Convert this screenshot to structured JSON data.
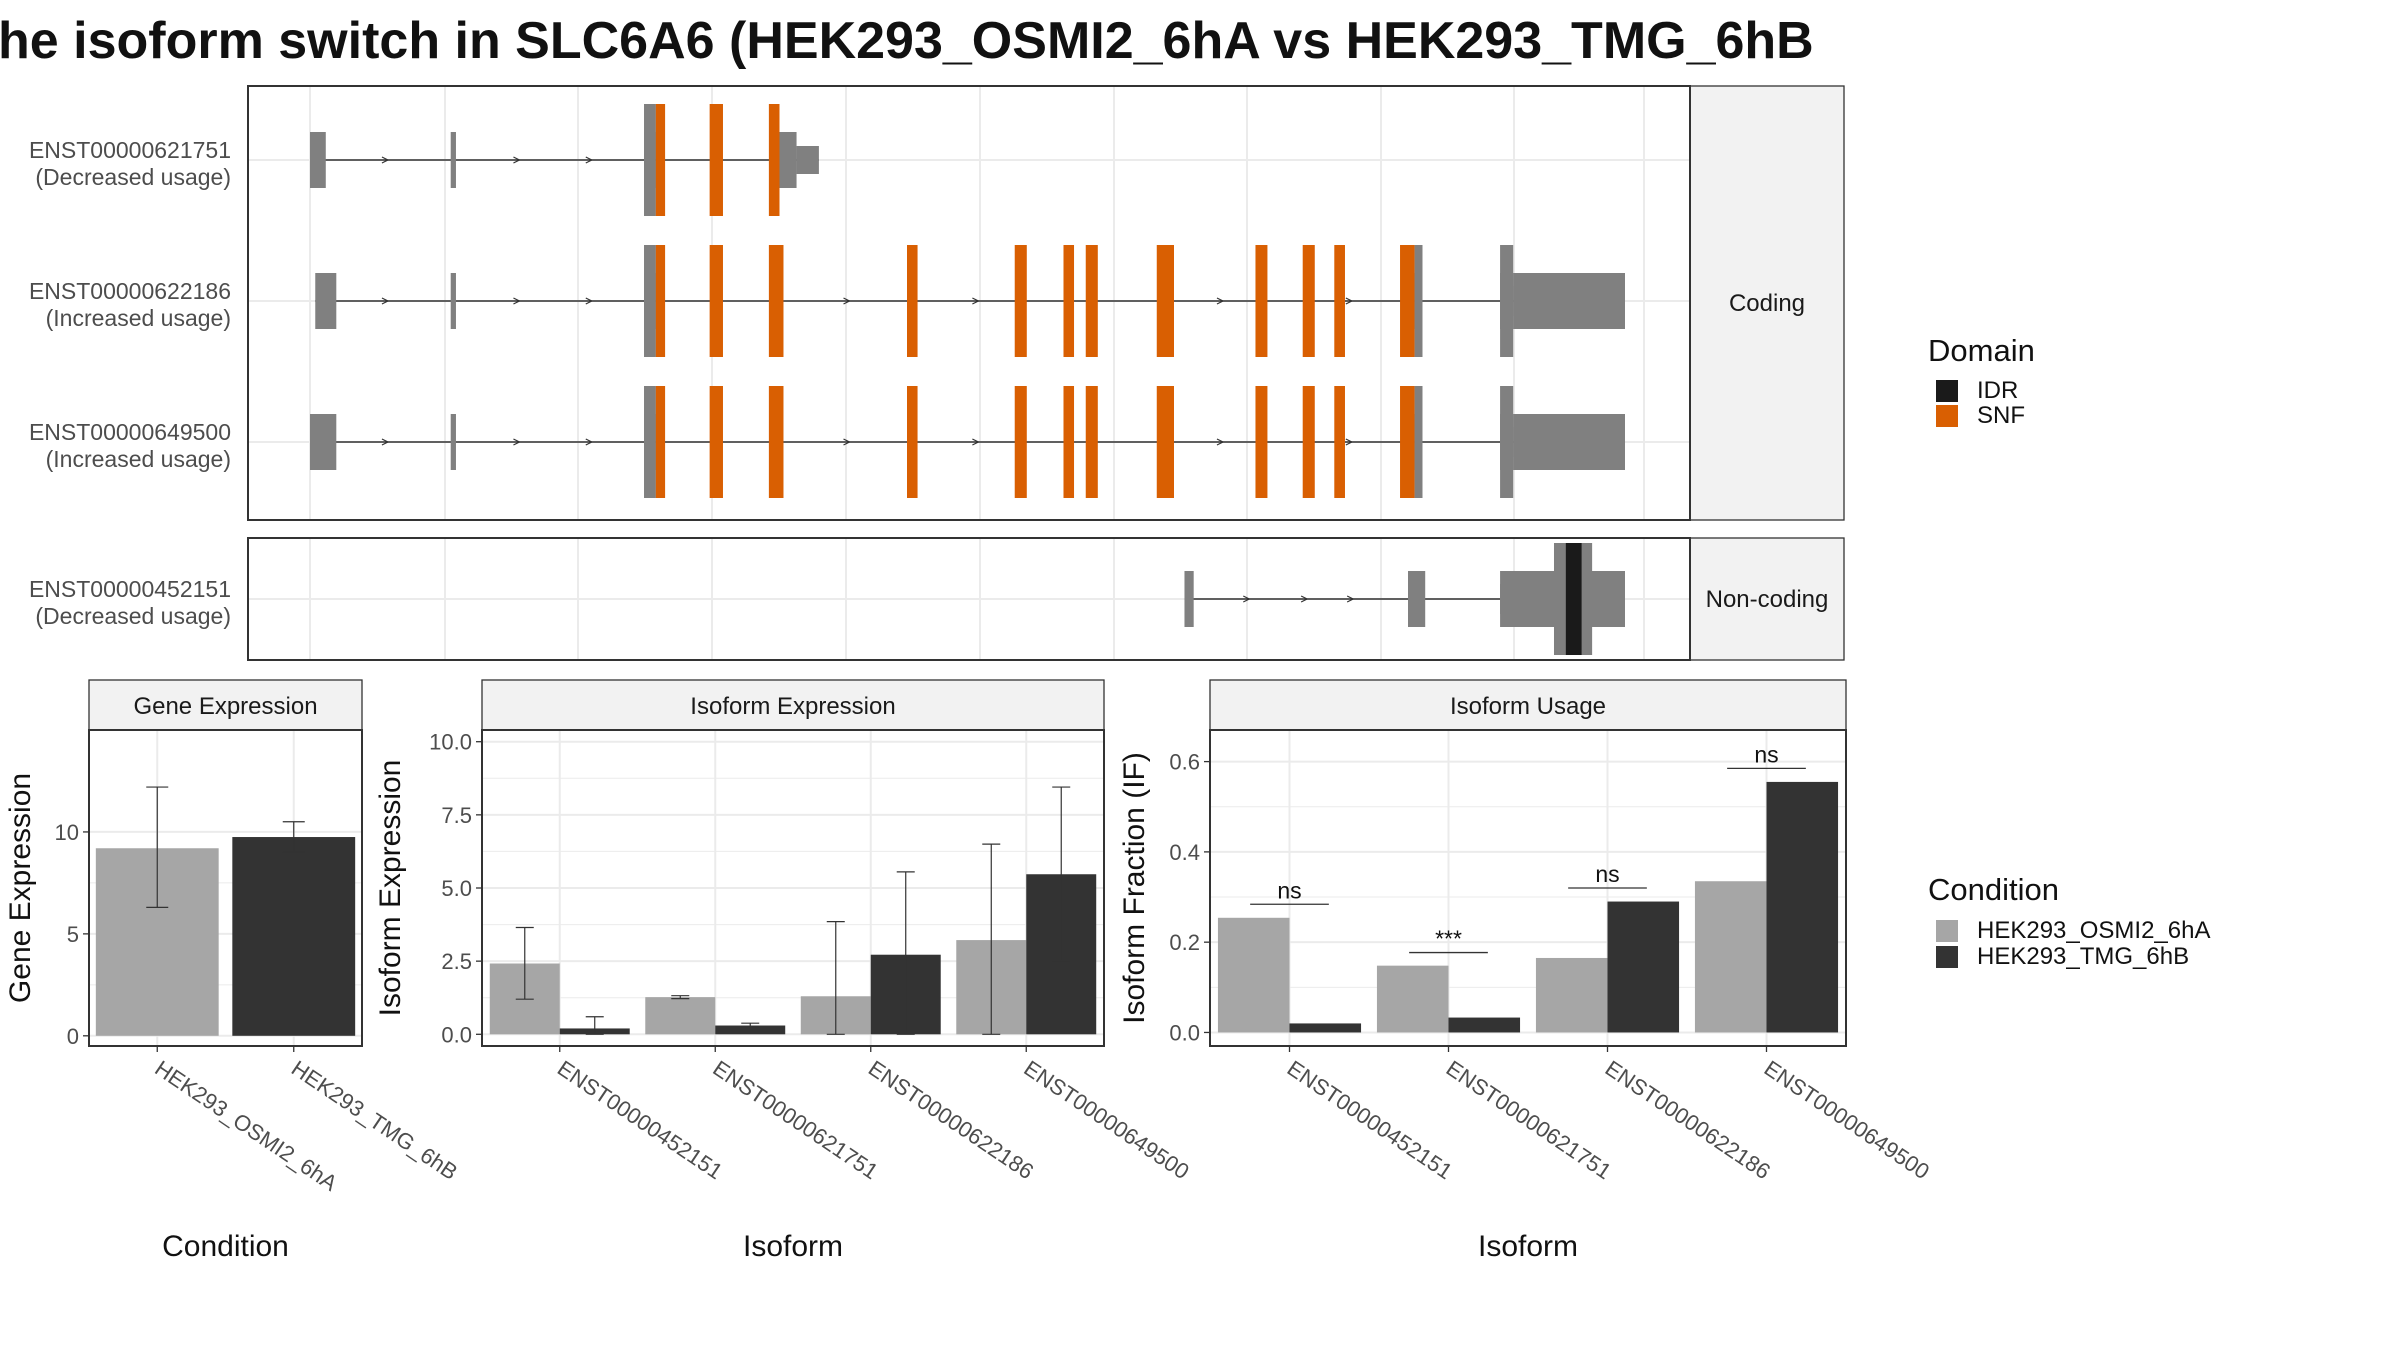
{
  "title": "he isoform switch in SLC6A6 (HEK293_OSMI2_6hA vs HEK293_TMG_6hB",
  "colors": {
    "exon": "#808080",
    "snf": "#d95f02",
    "idr": "#1a1a1a",
    "condA": "#a6a6a6",
    "condB": "#333333"
  },
  "structure": {
    "x_domain": [
      0,
      1000
    ],
    "coding_label": "Coding",
    "noncoding_label": "Non-coding",
    "transcripts": [
      {
        "id": "ENST00000621751",
        "usage": "(Decreased usage)",
        "panel": "coding",
        "exons": [
          [
            0,
            12
          ],
          [
            107,
            111
          ],
          [
            254,
            263
          ],
          [
            357,
            370
          ]
        ],
        "cds_small": [
          [
            370,
            387
          ]
        ],
        "domains": [
          {
            "type": "SNF",
            "ranges": [
              [
                263,
                270
              ],
              [
                304,
                314
              ],
              [
                349,
                357
              ]
            ]
          }
        ],
        "arrows": [
          57,
          157,
          212
        ]
      },
      {
        "id": "ENST00000622186",
        "usage": "(Increased usage)",
        "panel": "coding",
        "exons": [
          [
            4,
            20
          ],
          [
            107,
            111
          ],
          [
            254,
            263
          ],
          [
            905,
            915
          ]
        ],
        "cds_big": [
          [
            915,
            1000
          ]
        ],
        "domains": [
          {
            "type": "SNF",
            "ranges": [
              [
                263,
                270
              ],
              [
                304,
                314
              ],
              [
                349,
                360
              ],
              [
                454,
                462
              ],
              [
                536,
                545
              ],
              [
                573,
                581
              ],
              [
                590,
                599
              ],
              [
                644,
                657
              ],
              [
                719,
                728
              ],
              [
                755,
                764
              ],
              [
                779,
                787
              ],
              [
                829,
                840
              ]
            ]
          }
        ],
        "tail_exons": [
          [
            840,
            846
          ]
        ],
        "arrows": [
          57,
          157,
          212,
          408,
          506,
          692,
          790
        ]
      },
      {
        "id": "ENST00000649500",
        "usage": "(Increased usage)",
        "panel": "coding",
        "exons": [
          [
            0,
            20
          ],
          [
            107,
            111
          ],
          [
            254,
            263
          ],
          [
            905,
            915
          ]
        ],
        "cds_big": [
          [
            915,
            1000
          ]
        ],
        "domains": [
          {
            "type": "SNF",
            "ranges": [
              [
                263,
                270
              ],
              [
                304,
                314
              ],
              [
                349,
                360
              ],
              [
                454,
                462
              ],
              [
                536,
                545
              ],
              [
                573,
                581
              ],
              [
                590,
                599
              ],
              [
                644,
                657
              ],
              [
                719,
                728
              ],
              [
                755,
                764
              ],
              [
                779,
                787
              ],
              [
                829,
                840
              ]
            ]
          }
        ],
        "tail_exons": [
          [
            840,
            846
          ]
        ],
        "arrows": [
          57,
          157,
          212,
          408,
          506,
          692,
          790
        ]
      },
      {
        "id": "ENST00000452151",
        "usage": "(Decreased usage)",
        "panel": "noncoding",
        "exons": [
          [
            665,
            672
          ],
          [
            835,
            848
          ]
        ],
        "cds_big": [
          [
            905,
            1000
          ]
        ],
        "domains": [
          {
            "type": "IDR",
            "ranges": [
              [
                955,
                967
              ]
            ]
          }
        ],
        "arrows": [
          712,
          756,
          791
        ]
      }
    ]
  },
  "legend_domain": {
    "title": "Domain",
    "items": [
      "IDR",
      "SNF"
    ]
  },
  "legend_condition": {
    "title": "Condition",
    "items": [
      "HEK293_OSMI2_6hA",
      "HEK293_TMG_6hB"
    ]
  },
  "chart_data": [
    {
      "type": "bar",
      "title": "Gene Expression",
      "xlabel": "Condition",
      "ylabel": "Gene Expression",
      "categories": [
        "HEK293_OSMI2_6hA",
        "HEK293_TMG_6hB"
      ],
      "values": [
        9.2,
        9.75
      ],
      "errors": [
        [
          6.3,
          12.2
        ],
        [
          9.0,
          10.5
        ]
      ],
      "ylim": [
        -0.5,
        15
      ],
      "yticks": [
        0,
        5,
        10
      ]
    },
    {
      "type": "bar",
      "title": "Isoform Expression",
      "xlabel": "Isoform",
      "ylabel": "Isoform Expression",
      "categories": [
        "ENST00000452151",
        "ENST00000621751",
        "ENST00000622186",
        "ENST00000649500"
      ],
      "series": [
        {
          "name": "HEK293_OSMI2_6hA",
          "values": [
            2.42,
            1.27,
            1.3,
            3.22
          ],
          "errors": [
            [
              1.2,
              3.65
            ],
            [
              1.22,
              1.32
            ],
            [
              0.0,
              3.85
            ],
            [
              0.0,
              6.5
            ]
          ]
        },
        {
          "name": "HEK293_TMG_6hB",
          "values": [
            0.2,
            0.3,
            2.72,
            5.47
          ],
          "errors": [
            [
              0.0,
              0.6
            ],
            [
              0.24,
              0.38
            ],
            [
              0.0,
              5.55
            ],
            [
              2.5,
              8.45
            ]
          ]
        }
      ],
      "ylim": [
        -0.4,
        10.4
      ],
      "yticks": [
        "0.0",
        "2.5",
        "5.0",
        "7.5",
        "10.0"
      ]
    },
    {
      "type": "bar",
      "title": "Isoform Usage",
      "xlabel": "Isoform",
      "ylabel": "Isoform Fraction (IF)",
      "categories": [
        "ENST00000452151",
        "ENST00000621751",
        "ENST00000622186",
        "ENST00000649500"
      ],
      "series": [
        {
          "name": "HEK293_OSMI2_6hA",
          "values": [
            0.254,
            0.148,
            0.165,
            0.335
          ]
        },
        {
          "name": "HEK293_TMG_6hB",
          "values": [
            0.02,
            0.033,
            0.29,
            0.555
          ]
        }
      ],
      "significance": [
        "ns",
        "***",
        "ns",
        "ns"
      ],
      "sig_level": [
        0.284,
        0.177,
        0.32,
        0.585
      ],
      "ylim": [
        -0.03,
        0.67
      ],
      "yticks": [
        "0.0",
        "0.2",
        "0.4",
        "0.6"
      ]
    }
  ]
}
